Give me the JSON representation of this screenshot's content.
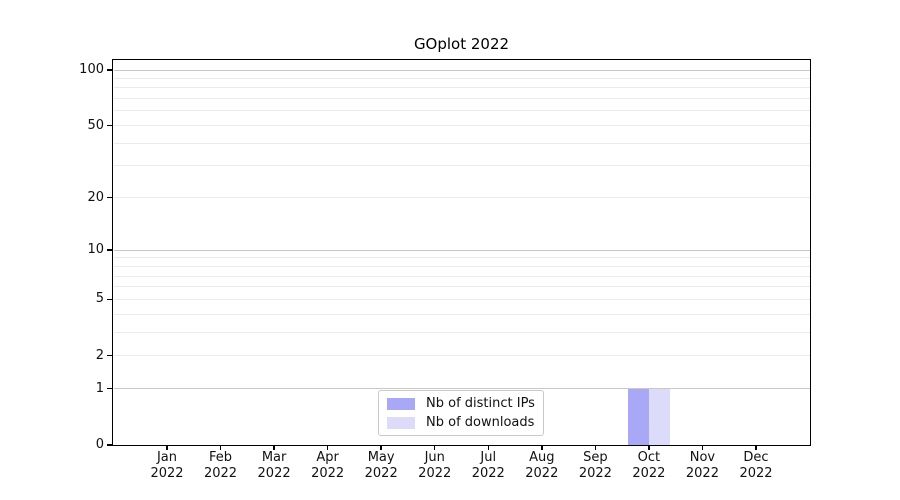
{
  "chart_data": {
    "type": "bar",
    "title": "GOplot 2022",
    "categories": [
      {
        "month": "Jan",
        "year": "2022"
      },
      {
        "month": "Feb",
        "year": "2022"
      },
      {
        "month": "Mar",
        "year": "2022"
      },
      {
        "month": "Apr",
        "year": "2022"
      },
      {
        "month": "May",
        "year": "2022"
      },
      {
        "month": "Jun",
        "year": "2022"
      },
      {
        "month": "Jul",
        "year": "2022"
      },
      {
        "month": "Aug",
        "year": "2022"
      },
      {
        "month": "Sep",
        "year": "2022"
      },
      {
        "month": "Oct",
        "year": "2022"
      },
      {
        "month": "Nov",
        "year": "2022"
      },
      {
        "month": "Dec",
        "year": "2022"
      }
    ],
    "series": [
      {
        "name": "Nb of distinct IPs",
        "color": "#a8a8f7",
        "values": [
          0,
          0,
          0,
          0,
          0,
          0,
          0,
          0,
          0,
          1,
          0,
          0
        ]
      },
      {
        "name": "Nb of downloads",
        "color": "#dcdcfa",
        "values": [
          0,
          0,
          0,
          0,
          0,
          0,
          0,
          0,
          0,
          1,
          0,
          0
        ]
      }
    ],
    "xlabel": "",
    "ylabel": "",
    "y_axis": {
      "scale": "log1p",
      "ticks": [
        0,
        1,
        2,
        5,
        10,
        20,
        50,
        100
      ],
      "major_gridlines": [
        1,
        10,
        100
      ],
      "minor_gridlines": [
        2,
        3,
        4,
        5,
        6,
        7,
        8,
        9,
        20,
        30,
        40,
        50,
        60,
        70,
        80,
        90
      ],
      "ylim": [
        0,
        113
      ]
    },
    "legend_position": "lower center",
    "grid": "horizontal",
    "colors": {
      "background": "#ffffff",
      "major_grid": "#c8c8c8",
      "minor_grid": "#ebebeb",
      "spine": "#000000",
      "text": "#111111"
    }
  }
}
